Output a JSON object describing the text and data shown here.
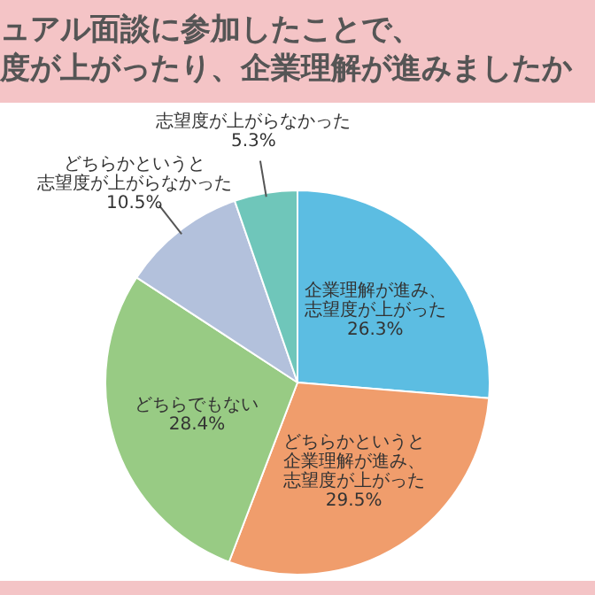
{
  "chart_data": {
    "type": "pie",
    "title": "ュアル面談に参加したことで、度が上がったり、企業理解が進みましたか",
    "categories": [
      "企業理解が進み、志望度が上がった",
      "どちらかというと企業理解が進み、志望度が上がった",
      "どちらでもない",
      "どちらかというと志望度が上がらなかった",
      "志望度が上がらなかった"
    ],
    "values": [
      26.3,
      29.5,
      28.4,
      10.5,
      5.3
    ],
    "value_labels": [
      "26.3%",
      "29.5%",
      "28.4%",
      "10.5%",
      "5.3%"
    ],
    "colors": [
      "#5cbde2",
      "#f09d6c",
      "#98cb84",
      "#b3c1dc",
      "#6fc6ba"
    ],
    "legend": false
  }
}
